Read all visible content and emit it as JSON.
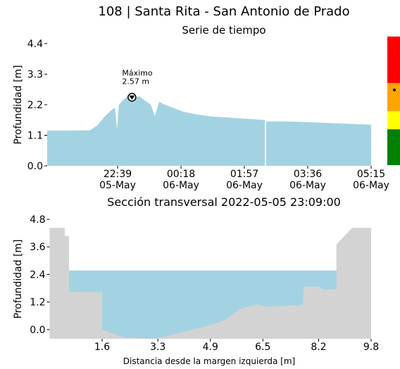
{
  "chart_data": [
    {
      "type": "area",
      "title": "108 | Santa Rita - San Antonio de Prado",
      "subtitle": "Serie de tiempo",
      "ylabel": "Profundidad [m]",
      "color": "#a3d3e2",
      "x": [
        0,
        36,
        67,
        78,
        89,
        100,
        106,
        109,
        112,
        120,
        128,
        135,
        144,
        153,
        162,
        168,
        175,
        184,
        196,
        212,
        234,
        256,
        289,
        322,
        340,
        341,
        342,
        366,
        399,
        432,
        465,
        506
      ],
      "values": [
        1.27,
        1.27,
        1.28,
        1.45,
        1.75,
        2.0,
        2.1,
        1.3,
        2.2,
        2.4,
        2.57,
        2.45,
        2.5,
        2.35,
        2.2,
        1.8,
        2.3,
        2.2,
        2.1,
        1.95,
        1.85,
        1.78,
        1.73,
        1.68,
        1.65,
        null,
        1.6,
        1.6,
        1.58,
        1.55,
        1.52,
        1.48
      ],
      "xlim": [
        0,
        506
      ],
      "xticks": [
        {
          "value": 110,
          "label": "22:39\n05-May"
        },
        {
          "value": 209,
          "label": "00:18\n06-May"
        },
        {
          "value": 308,
          "label": "01:57\n06-May"
        },
        {
          "value": 407,
          "label": "03:36\n06-May"
        },
        {
          "value": 506,
          "label": "05:15\n06-May"
        }
      ],
      "ylim": [
        0,
        4.4
      ],
      "yticks": [
        {
          "value": 0,
          "label": "0.0"
        },
        1.1,
        2.2,
        3.3,
        4.4
      ],
      "annotation": {
        "text": [
          "Máximo",
          "2.57 m"
        ],
        "x": 128,
        "y": 2.57
      }
    },
    {
      "type": "cross-section",
      "title": "Sección transversal 2022-05-05 23:09:00",
      "xlabel": "Distancia desde la margen izquierda [m]",
      "ylabel": "Profundidad [m]",
      "color": "#d3d3d3",
      "water_color": "#a3d3e2",
      "water_level": 2.57,
      "x": [
        0,
        0.46,
        0.46,
        0.59,
        0.59,
        1.6,
        1.6,
        2.24,
        3.21,
        4.07,
        4.93,
        5.36,
        5.79,
        6.32,
        6.64,
        7.71,
        7.75,
        8.24,
        8.29,
        8.74,
        8.74,
        9.22,
        9.8
      ],
      "values": [
        4.43,
        4.43,
        4.07,
        4.07,
        1.65,
        1.62,
        0,
        -0.33,
        -0.4,
        -0.1,
        0.2,
        0.43,
        0.9,
        1.1,
        1.0,
        1.07,
        1.87,
        1.87,
        1.75,
        1.75,
        3.7,
        4.43,
        4.43
      ],
      "xlim": [
        0,
        9.8
      ],
      "xticks": [
        1.6,
        3.3,
        4.9,
        6.5,
        8.2,
        9.8
      ],
      "ylim": [
        -0.4,
        4.8
      ],
      "yticks": [
        {
          "value": 0,
          "label": "0.0"
        },
        1.2,
        2.4,
        3.6,
        4.8
      ]
    }
  ]
}
